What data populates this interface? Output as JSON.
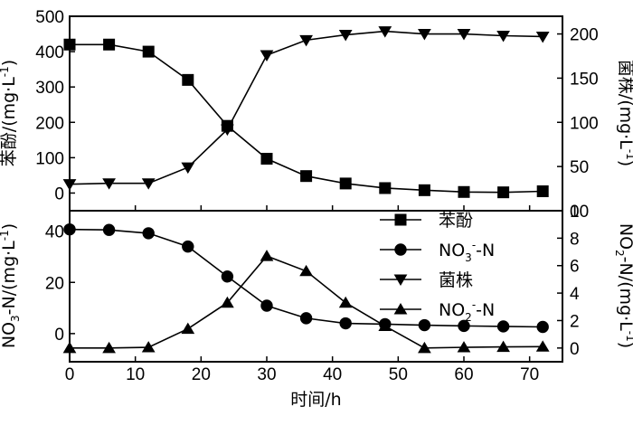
{
  "chart_data": [
    {
      "type": "line",
      "panel": "top",
      "x_ticks": [
        0,
        10,
        20,
        30,
        40,
        50,
        60,
        70
      ],
      "xlim": [
        0,
        75
      ],
      "y_left": {
        "label": "苯酚/(mg·L",
        "label_sup": "-1",
        "label_end": ")",
        "ticks": [
          0,
          100,
          200,
          300,
          400,
          500
        ],
        "ylim": [
          -50,
          500
        ]
      },
      "y_right": {
        "label": "菌株/(mg·L",
        "label_sup": "-1",
        "label_end": ")",
        "ticks": [
          0,
          50,
          100,
          150,
          200
        ],
        "ylim": [
          0,
          220
        ]
      },
      "series": [
        {
          "name": "苯酚",
          "axis": "left",
          "marker": "square",
          "x": [
            0,
            6,
            12,
            18,
            24,
            30,
            36,
            42,
            48,
            54,
            60,
            66,
            72
          ],
          "values": [
            420,
            420,
            400,
            320,
            190,
            97,
            48,
            27,
            14,
            8,
            3,
            2,
            5
          ]
        },
        {
          "name": "菌株",
          "axis": "right",
          "marker": "triangle-down",
          "x": [
            0,
            6,
            12,
            18,
            24,
            30,
            36,
            42,
            48,
            54,
            60,
            66,
            72
          ],
          "values": [
            30,
            31,
            31,
            49,
            92,
            176,
            193,
            199,
            203,
            200,
            200,
            198,
            197
          ]
        }
      ]
    },
    {
      "type": "line",
      "panel": "bottom",
      "x_ticks": [
        0,
        10,
        20,
        30,
        40,
        50,
        60,
        70
      ],
      "xlim": [
        0,
        75
      ],
      "xlabel": "时间/h",
      "y_left": {
        "label_pre": "NO",
        "label_sub": "3",
        "label": "-N/(mg·L",
        "label_sup": "-1",
        "label_end": ")",
        "ticks": [
          0,
          20,
          40
        ],
        "ylim": [
          -11,
          48
        ]
      },
      "y_right": {
        "label_pre": "NO",
        "label_sub": "2",
        "label": "-N/(mg·L",
        "label_sup": "-1",
        "label_end": ")",
        "ticks": [
          0,
          2,
          4,
          6,
          8,
          10
        ],
        "ylim": [
          -1,
          10
        ]
      },
      "series": [
        {
          "name": "NO3--N",
          "axis": "left",
          "marker": "circle",
          "x": [
            0,
            6,
            12,
            18,
            24,
            30,
            36,
            42,
            48,
            54,
            60,
            66,
            72
          ],
          "values": [
            40.7,
            40.5,
            39.2,
            34,
            22.3,
            10.9,
            6,
            4,
            3.7,
            3.3,
            3,
            2.8,
            2.6
          ]
        },
        {
          "name": "NO2--N",
          "axis": "right",
          "marker": "triangle-up",
          "x": [
            0,
            6,
            12,
            18,
            24,
            30,
            36,
            42,
            48,
            54,
            60,
            66,
            72
          ],
          "values": [
            0,
            0,
            0.05,
            1.4,
            3.3,
            6.7,
            5.6,
            3.3,
            1.6,
            0,
            0.05,
            0.08,
            0.1
          ]
        }
      ]
    }
  ],
  "legend": {
    "position": "bottom-panel-upper-right",
    "entries": [
      {
        "marker": "square",
        "label": "苯酚"
      },
      {
        "marker": "circle",
        "label_pre": "NO",
        "label_sub": "3",
        "label_sup": "-",
        "label": "-N"
      },
      {
        "marker": "triangle-down",
        "label": "菌株"
      },
      {
        "marker": "triangle-up",
        "label_pre": "NO",
        "label_sub": "2",
        "label_sup": "-",
        "label": "-N"
      }
    ]
  },
  "colors": {
    "ink": "#000000",
    "background": "#ffffff"
  }
}
